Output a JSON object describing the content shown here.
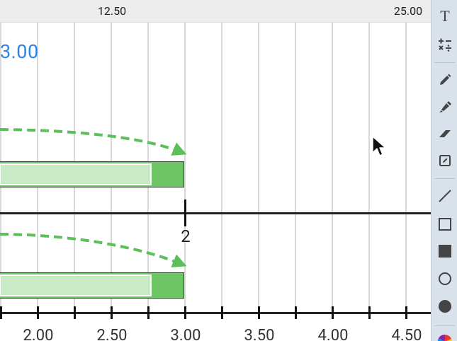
{
  "ruler": {
    "labels": [
      {
        "text": "12.50",
        "value": 12.5
      },
      {
        "text": "25.00",
        "value": 25.0
      }
    ]
  },
  "canvas": {
    "big_value": "3.00",
    "number_line_label": "2",
    "axis_labels": [
      "2.00",
      "2.50",
      "3.00",
      "3.50",
      "4.00",
      "4.50"
    ]
  },
  "toolbar": {
    "tools": [
      {
        "name": "text-tool",
        "icon": "text-icon",
        "glyph": "T"
      },
      {
        "name": "math-tool",
        "icon": "math-operators-icon",
        "glyph": "+-×÷"
      },
      {
        "name": "pen-tool",
        "icon": "pen-icon",
        "glyph": ""
      },
      {
        "name": "highlighter-tool",
        "icon": "highlighter-icon",
        "glyph": ""
      },
      {
        "name": "eraser-tool",
        "icon": "eraser-icon",
        "glyph": ""
      },
      {
        "name": "note-tool",
        "icon": "note-edit-icon",
        "glyph": ""
      },
      {
        "name": "line-tool",
        "icon": "line-icon",
        "glyph": ""
      },
      {
        "name": "rectangle-outline-tool",
        "icon": "rectangle-outline-icon",
        "glyph": ""
      },
      {
        "name": "rectangle-filled-tool",
        "icon": "rectangle-filled-icon",
        "glyph": ""
      },
      {
        "name": "circle-outline-tool",
        "icon": "circle-outline-icon",
        "glyph": ""
      },
      {
        "name": "circle-filled-tool",
        "icon": "circle-filled-icon",
        "glyph": ""
      },
      {
        "name": "color-picker-tool",
        "icon": "color-wheel-icon",
        "glyph": ""
      }
    ]
  },
  "colors": {
    "accent_blue": "#2f80ed",
    "bar_green": "#6dc566",
    "bar_light_green": "#c8eac4",
    "arrow_green": "#5cbf5a",
    "toolbar_bg": "#d9e1ea"
  }
}
